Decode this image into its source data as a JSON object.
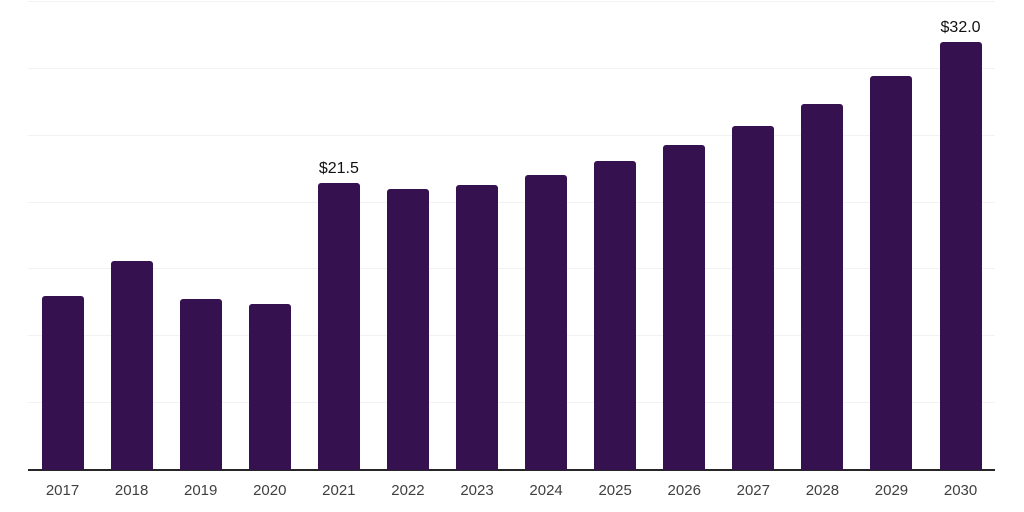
{
  "chart_data": {
    "type": "bar",
    "title": "",
    "xlabel": "",
    "ylabel": "",
    "categories": [
      "2017",
      "2018",
      "2019",
      "2020",
      "2021",
      "2022",
      "2023",
      "2024",
      "2025",
      "2026",
      "2027",
      "2028",
      "2029",
      "2030"
    ],
    "values": [
      13.0,
      15.6,
      12.8,
      12.4,
      21.5,
      21.0,
      21.3,
      22.1,
      23.1,
      24.3,
      25.7,
      27.4,
      29.5,
      32.0
    ],
    "data_labels": [
      {
        "category": "2021",
        "text": "$21.5"
      },
      {
        "category": "2030",
        "text": "$32.0"
      }
    ],
    "ylim": [
      0,
      35
    ],
    "ytick_step": 5,
    "grid": "horizontal",
    "legend": "none",
    "bar_color": "#351150",
    "gridline_color": "#f2f2f2",
    "axis_line_color": "#262626",
    "tick_label_color": "#404040",
    "data_label_color": "#111111",
    "background_color": "#ffffff"
  }
}
